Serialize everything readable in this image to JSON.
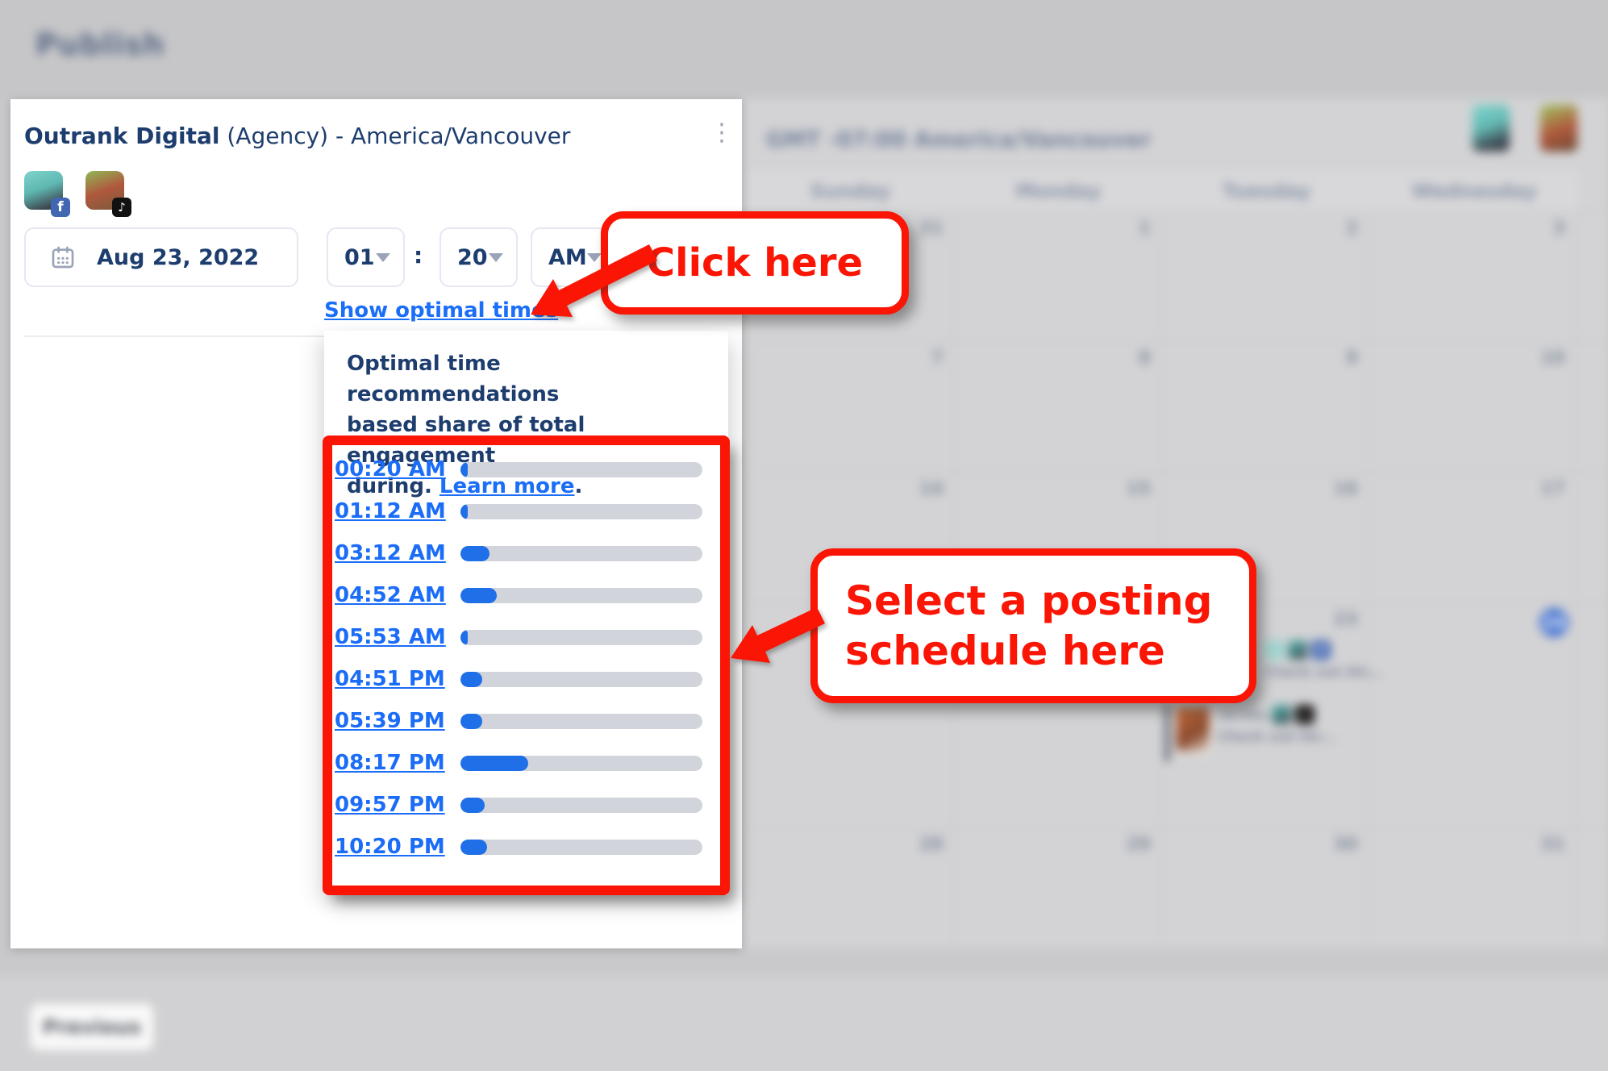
{
  "header": {
    "title": "Publish"
  },
  "panel": {
    "title_brand": "Outrank Digital",
    "title_rest": " (Agency) - America/Vancouver",
    "menu_icon": "⋮",
    "accounts": [
      {
        "platform": "facebook"
      },
      {
        "platform": "tiktok"
      }
    ],
    "date_value": "Aug 23, 2022",
    "time": {
      "hour": "01",
      "separator": ":",
      "minute": "20",
      "meridiem": "AM"
    },
    "show_optimal_label": "Show optimal times"
  },
  "tooltip": {
    "line1": "Optimal time recommendations",
    "line2": "based share of total engagement",
    "line3_prefix": "during. ",
    "link_label": "Learn more",
    "line3_suffix": "."
  },
  "optimal_times": [
    {
      "time": "00:20 AM",
      "engagement_pct": 3
    },
    {
      "time": "01:12 AM",
      "engagement_pct": 3
    },
    {
      "time": "03:12 AM",
      "engagement_pct": 12
    },
    {
      "time": "04:52 AM",
      "engagement_pct": 15
    },
    {
      "time": "05:53 AM",
      "engagement_pct": 3
    },
    {
      "time": "04:51 PM",
      "engagement_pct": 9
    },
    {
      "time": "05:39 PM",
      "engagement_pct": 9
    },
    {
      "time": "08:17 PM",
      "engagement_pct": 28
    },
    {
      "time": "09:57 PM",
      "engagement_pct": 10
    },
    {
      "time": "10:20 PM",
      "engagement_pct": 11
    }
  ],
  "annotations": {
    "click_here": "Click here",
    "select_line1": "Select a posting",
    "select_line2": "schedule here"
  },
  "calendar": {
    "timezone_label": "GMT -07:00 America/Vancouver",
    "day_headers": [
      "Sunday",
      "Monday",
      "Tuesday",
      "Wednesday"
    ],
    "weeks": [
      [
        "31",
        "1",
        "2",
        "3"
      ],
      [
        "7",
        "8",
        "9",
        "10"
      ],
      [
        "14",
        "15",
        "16",
        "17"
      ],
      [
        "",
        "",
        "23",
        "24"
      ],
      [
        "28",
        "29",
        "30",
        "31"
      ]
    ],
    "today": "24",
    "events": [
      {
        "text": "Check out thi..."
      },
      {
        "time": "10:39a",
        "text": "Check out thi..."
      }
    ]
  },
  "footer": {
    "previous_label": "Previous"
  },
  "icons": {
    "facebook": "f",
    "tiktok": "♪",
    "menu": "⋮"
  },
  "colors": {
    "annotation_red": "#fa1505",
    "link_blue": "#1a6ef7",
    "bar_fill_blue": "#1f6fe8",
    "bar_track_gray": "#d1d4da",
    "title_navy": "#1d3d6e",
    "today_badge_blue": "#3f6fd0"
  }
}
